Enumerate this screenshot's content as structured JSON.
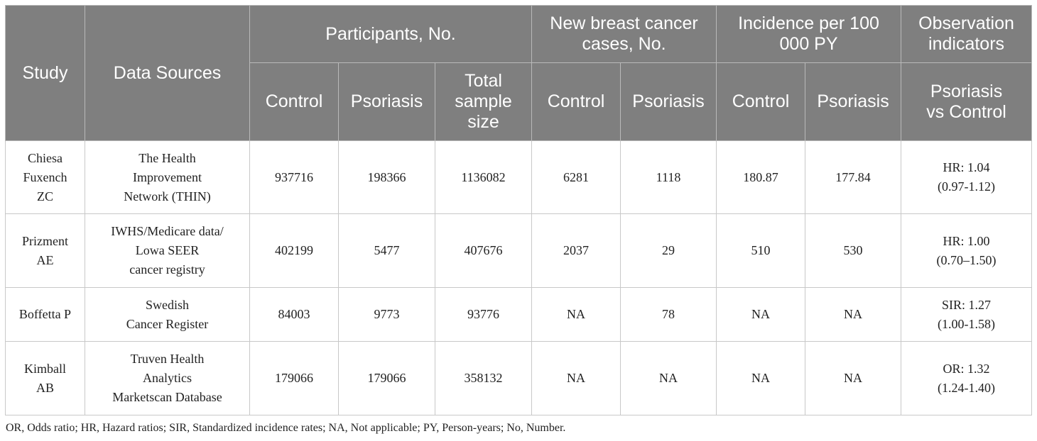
{
  "header": {
    "study": "Study",
    "data_sources": "Data Sources",
    "participants": "Participants, No.",
    "new_cases": [
      "New breast cancer",
      "cases, No."
    ],
    "incidence": [
      "Incidence per 100",
      "000 PY"
    ],
    "observation": [
      "Observation",
      "indicators"
    ],
    "participants_sub": {
      "control": "Control",
      "psoriasis": "Psoriasis",
      "total": [
        "Total",
        "sample",
        "size"
      ]
    },
    "new_cases_sub": {
      "control": "Control",
      "psoriasis": "Psoriasis"
    },
    "incidence_sub": {
      "control": "Control",
      "psoriasis": "Psoriasis"
    },
    "observation_sub": [
      "Psoriasis",
      "vs Control"
    ]
  },
  "rows": [
    {
      "study": [
        "Chiesa",
        "Fuxench",
        "ZC"
      ],
      "source": [
        "The Health",
        "Improvement",
        "Network (THIN)"
      ],
      "p_control": "937716",
      "p_psoriasis": "198366",
      "p_total": "1136082",
      "c_control": "6281",
      "c_psoriasis": "1118",
      "i_control": "180.87",
      "i_psoriasis": "177.84",
      "obs": [
        "HR: 1.04",
        "(0.97-1.12)"
      ]
    },
    {
      "study": [
        "Prizment",
        "AE"
      ],
      "source": [
        "IWHS/Medicare data/",
        "Lowa SEER",
        "cancer registry"
      ],
      "p_control": "402199",
      "p_psoriasis": "5477",
      "p_total": "407676",
      "c_control": "2037",
      "c_psoriasis": "29",
      "i_control": "510",
      "i_psoriasis": "530",
      "obs": [
        "HR: 1.00",
        "(0.70–1.50)"
      ]
    },
    {
      "study": [
        "Boffetta P"
      ],
      "source": [
        "Swedish",
        "Cancer Register"
      ],
      "p_control": "84003",
      "p_psoriasis": "9773",
      "p_total": "93776",
      "c_control": "NA",
      "c_psoriasis": "78",
      "i_control": "NA",
      "i_psoriasis": "NA",
      "obs": [
        "SIR: 1.27",
        "(1.00-1.58)"
      ]
    },
    {
      "study": [
        "Kimball",
        "AB"
      ],
      "source": [
        "Truven Health",
        "Analytics",
        "Marketscan Database"
      ],
      "p_control": "179066",
      "p_psoriasis": "179066",
      "p_total": "358132",
      "c_control": "NA",
      "c_psoriasis": "NA",
      "i_control": "NA",
      "i_psoriasis": "NA",
      "obs": [
        "OR: 1.32",
        "(1.24-1.40)"
      ]
    }
  ],
  "footnote": "OR, Odds ratio; HR, Hazard ratios; SIR, Standardized incidence rates; NA, Not applicable; PY, Person-years; No, Number."
}
